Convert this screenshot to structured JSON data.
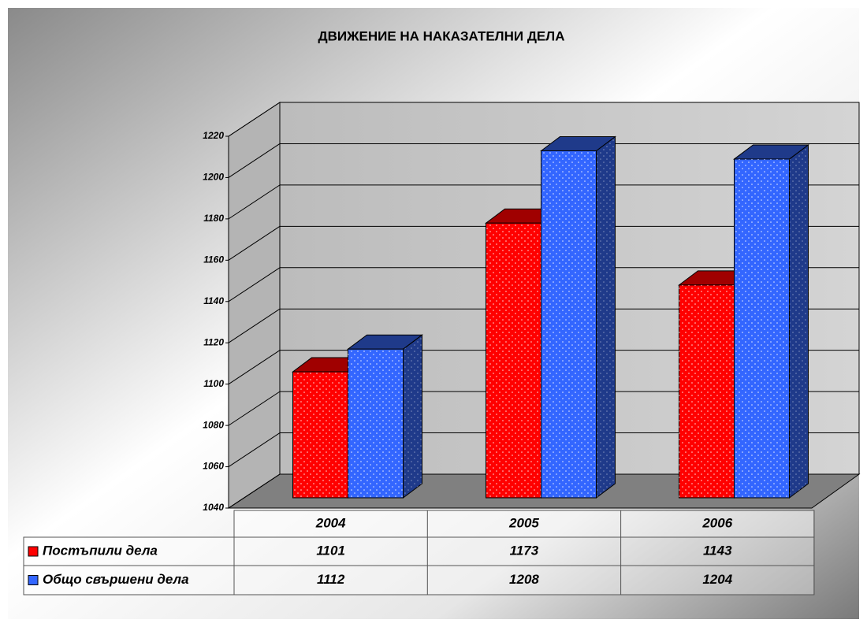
{
  "chart_data": {
    "type": "bar3d",
    "title": "ДВИЖЕНИЕ НА НАКАЗАТЕЛНИ ДЕЛА",
    "categories": [
      "2004",
      "2005",
      "2006"
    ],
    "series": [
      {
        "name": "Постъпили дела",
        "color": "#ff0000",
        "values": [
          1101,
          1173,
          1143
        ]
      },
      {
        "name": "Общо свършени дела",
        "color": "#3366ff",
        "values": [
          1112,
          1208,
          1204
        ]
      }
    ],
    "ylim": [
      1040,
      1220
    ],
    "yticks": [
      1040,
      1060,
      1080,
      1100,
      1120,
      1140,
      1160,
      1180,
      1200,
      1220
    ],
    "grid": true
  }
}
